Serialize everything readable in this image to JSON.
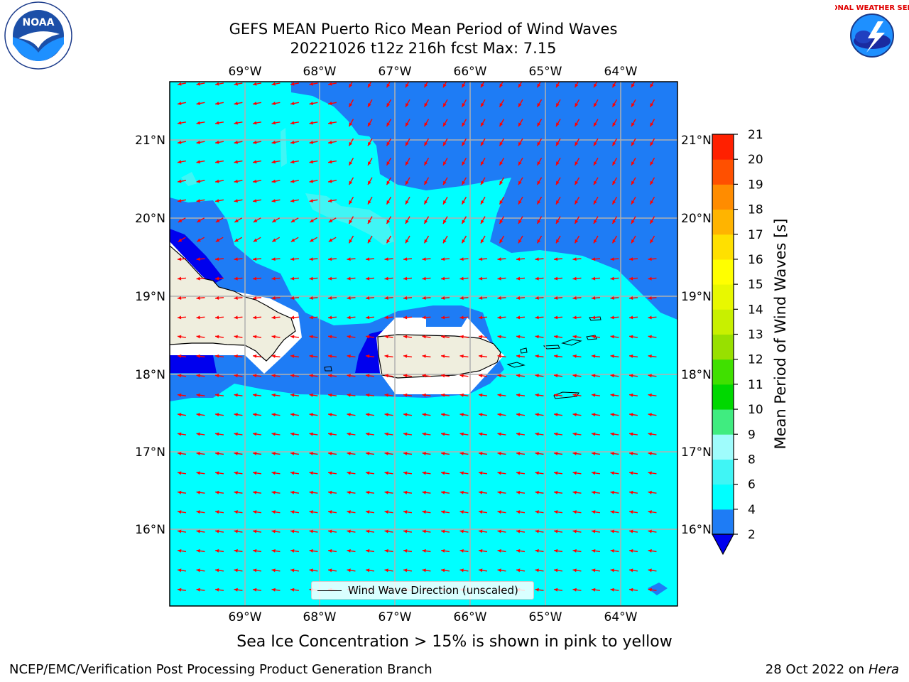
{
  "title_line1": "GEFS MEAN Puerto Rico Mean Period of Wind Waves",
  "title_line2": "20221026 t12z 216h fcst   Max: 7.15",
  "logos": {
    "left": "noaa-logo",
    "right": "nws-logo",
    "left_text": "NOAA",
    "right_text": "NATIONAL WEATHER SERVICE"
  },
  "map": {
    "lon_labels": [
      "69°W",
      "68°W",
      "67°W",
      "66°W",
      "65°W",
      "64°W"
    ],
    "lat_labels": [
      "21°N",
      "20°N",
      "19°N",
      "18°N",
      "17°N",
      "16°N"
    ],
    "legend_label": "Wind Wave Direction (unscaled)"
  },
  "colorbar": {
    "label": "Mean Period of Wind Waves [s]",
    "ticks": [
      "2",
      "4",
      "6",
      "8",
      "9",
      "10",
      "11",
      "12",
      "13",
      "14",
      "15",
      "16",
      "17",
      "18",
      "19",
      "20",
      "21"
    ],
    "colors": [
      "#1e7cf5",
      "#00ffff",
      "#40f5f5",
      "#9ffcfc",
      "#40ec80",
      "#00d800",
      "#40e000",
      "#98e000",
      "#c8f000",
      "#e8f800",
      "#ffff00",
      "#ffe000",
      "#ffb400",
      "#ff8c00",
      "#ff5000",
      "#ff2000"
    ],
    "extend_color": "#0000ee"
  },
  "water_colors": {
    "deep": "#1e7cf5",
    "mid": "#00ffff",
    "light": "#40f5f5",
    "darkest": "#0000ee",
    "land": "#efeede"
  },
  "arrow_color": "#ff0000",
  "footer": {
    "sea_ice_note": "Sea Ice Concentration > 15% is shown in pink to yellow",
    "credit": "NCEP/EMC/Verification Post Processing Product Generation Branch",
    "date_prefix": "28 Oct 2022 on ",
    "date_machine": "Hera"
  }
}
